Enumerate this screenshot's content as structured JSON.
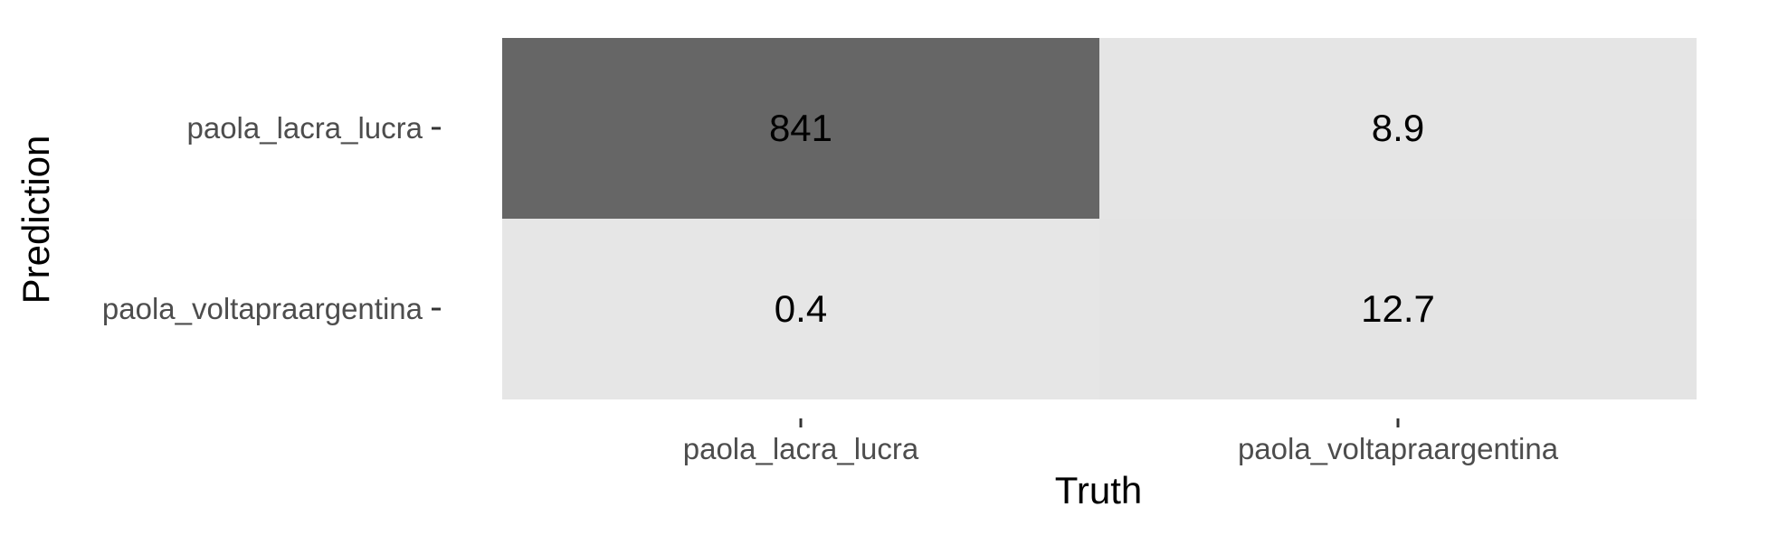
{
  "chart_data": {
    "type": "heatmap",
    "title": "",
    "xlabel": "Truth",
    "ylabel": "Prediction",
    "x_categories": [
      "paola_lacra_lucra",
      "paola_voltapraargentina"
    ],
    "y_categories": [
      "paola_lacra_lucra",
      "paola_voltapraargentina"
    ],
    "cells": [
      {
        "truth": "paola_lacra_lucra",
        "prediction": "paola_lacra_lucra",
        "value": 841,
        "label": "841"
      },
      {
        "truth": "paola_voltapraargentina",
        "prediction": "paola_lacra_lucra",
        "value": 8.9,
        "label": "8.9"
      },
      {
        "truth": "paola_lacra_lucra",
        "prediction": "paola_voltapraargentina",
        "value": 0.4,
        "label": "0.4"
      },
      {
        "truth": "paola_voltapraargentina",
        "prediction": "paola_voltapraargentina",
        "value": 12.7,
        "label": "12.7"
      }
    ],
    "colors": {
      "low": "#e6e6e6",
      "high": "#666666",
      "text": "#000000",
      "tick_label": "#4d4d4d",
      "tick": "#333333"
    },
    "legend": "none",
    "grid": false
  }
}
